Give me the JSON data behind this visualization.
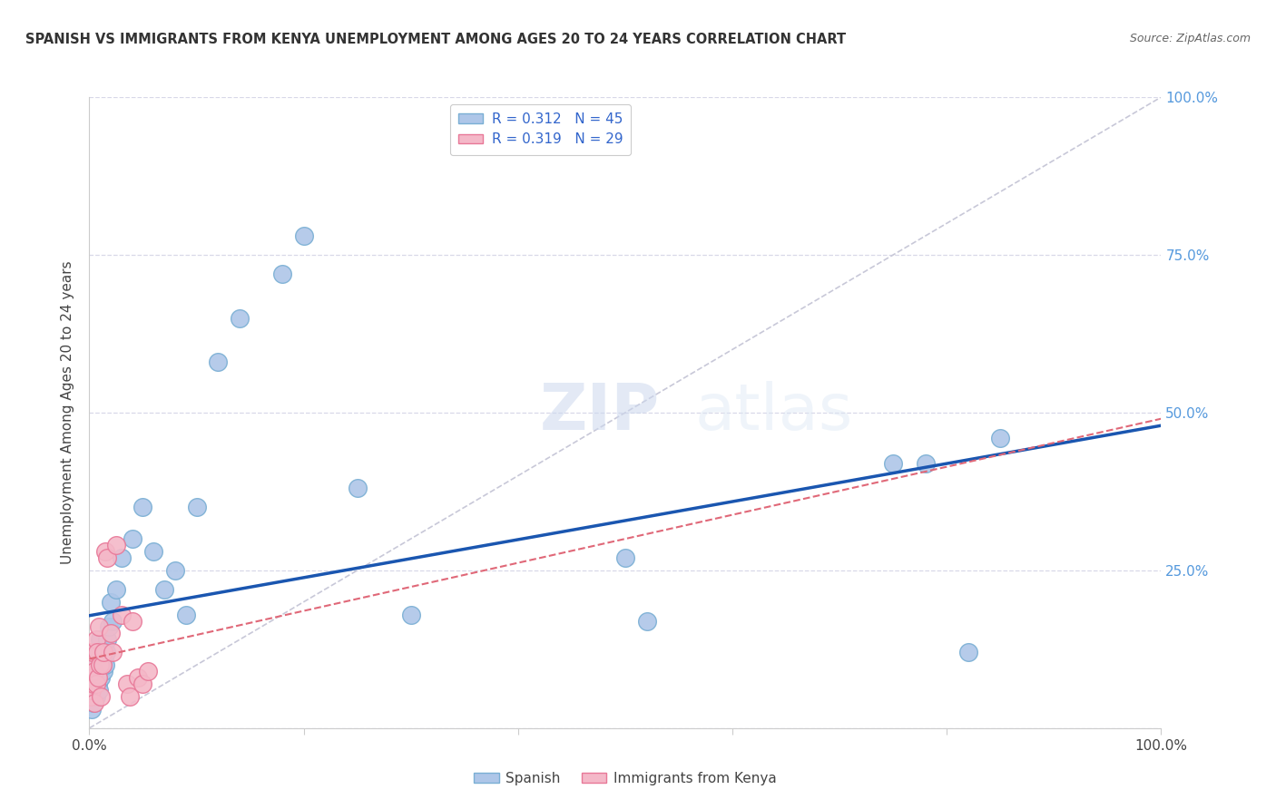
{
  "title": "SPANISH VS IMMIGRANTS FROM KENYA UNEMPLOYMENT AMONG AGES 20 TO 24 YEARS CORRELATION CHART",
  "source": "Source: ZipAtlas.com",
  "ylabel": "Unemployment Among Ages 20 to 24 years",
  "xlim": [
    0,
    1
  ],
  "ylim": [
    0,
    1
  ],
  "spanish_R": 0.312,
  "spanish_N": 45,
  "kenya_R": 0.319,
  "kenya_N": 29,
  "spanish_color": "#aec6e8",
  "kenya_color": "#f4b8c8",
  "spanish_edge_color": "#7aafd4",
  "kenya_edge_color": "#e87898",
  "trend_spanish_color": "#1a56b0",
  "trend_kenya_color": "#e06878",
  "ref_line_color": "#c8c8d8",
  "legend_label_spanish": "Spanish",
  "legend_label_kenya": "Immigrants from Kenya",
  "title_color": "#333333",
  "source_color": "#666666",
  "axis_label_color": "#444444",
  "tick_color": "#5599dd",
  "grid_color": "#d8d8e8",
  "spanish_x": [
    0.002,
    0.003,
    0.003,
    0.004,
    0.005,
    0.005,
    0.006,
    0.007,
    0.007,
    0.008,
    0.009,
    0.009,
    0.01,
    0.01,
    0.011,
    0.012,
    0.013,
    0.014,
    0.015,
    0.016,
    0.017,
    0.018,
    0.02,
    0.022,
    0.025,
    0.03,
    0.04,
    0.05,
    0.06,
    0.07,
    0.08,
    0.09,
    0.1,
    0.12,
    0.14,
    0.18,
    0.2,
    0.25,
    0.3,
    0.5,
    0.52,
    0.75,
    0.78,
    0.82,
    0.85
  ],
  "spanish_y": [
    0.03,
    0.05,
    0.07,
    0.04,
    0.06,
    0.09,
    0.05,
    0.08,
    0.1,
    0.07,
    0.06,
    0.12,
    0.09,
    0.14,
    0.08,
    0.1,
    0.09,
    0.11,
    0.1,
    0.12,
    0.14,
    0.16,
    0.2,
    0.17,
    0.22,
    0.27,
    0.3,
    0.35,
    0.28,
    0.22,
    0.25,
    0.18,
    0.35,
    0.58,
    0.65,
    0.72,
    0.78,
    0.38,
    0.18,
    0.27,
    0.17,
    0.42,
    0.42,
    0.12,
    0.46
  ],
  "kenya_x": [
    0.001,
    0.002,
    0.002,
    0.003,
    0.003,
    0.004,
    0.005,
    0.005,
    0.006,
    0.006,
    0.007,
    0.008,
    0.009,
    0.01,
    0.011,
    0.012,
    0.013,
    0.015,
    0.017,
    0.02,
    0.022,
    0.025,
    0.03,
    0.035,
    0.038,
    0.04,
    0.045,
    0.05,
    0.055
  ],
  "kenya_y": [
    0.05,
    0.06,
    0.1,
    0.08,
    0.12,
    0.07,
    0.04,
    0.09,
    0.07,
    0.14,
    0.12,
    0.08,
    0.16,
    0.1,
    0.05,
    0.1,
    0.12,
    0.28,
    0.27,
    0.15,
    0.12,
    0.29,
    0.18,
    0.07,
    0.05,
    0.17,
    0.08,
    0.07,
    0.09
  ]
}
